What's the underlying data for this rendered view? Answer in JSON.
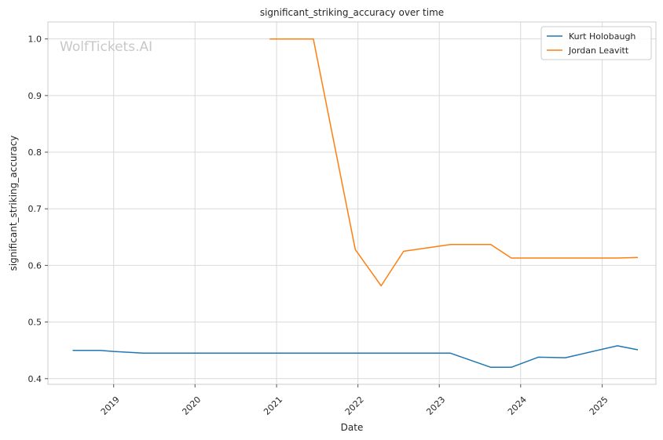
{
  "chart_data": {
    "type": "line",
    "title": "significant_striking_accuracy over time",
    "xlabel": "Date",
    "ylabel": "significant_striking_accuracy",
    "watermark": "WolfTickets.AI",
    "x_ticks": [
      "2019",
      "2020",
      "2021",
      "2022",
      "2023",
      "2024",
      "2025"
    ],
    "x_tick_dates": [
      "2019-01-01",
      "2020-01-01",
      "2021-01-01",
      "2022-01-01",
      "2023-01-01",
      "2024-01-01",
      "2025-01-01"
    ],
    "xlim": [
      "2018-03-12",
      "2025-08-30"
    ],
    "ylim": [
      0.39,
      1.03
    ],
    "y_ticks": [
      "0.4",
      "0.5",
      "0.6",
      "0.7",
      "0.8",
      "0.9",
      "1.0"
    ],
    "y_tick_values": [
      0.4,
      0.5,
      0.6,
      0.7,
      0.8,
      0.9,
      1.0
    ],
    "grid": true,
    "legend_position": "top-right",
    "series": [
      {
        "name": "Kurt Holobaugh",
        "color": "#1f77b4",
        "points": [
          {
            "x": "2018-07-01",
            "y": 0.45
          },
          {
            "x": "2018-11-01",
            "y": 0.45
          },
          {
            "x": "2019-01-01",
            "y": 0.448
          },
          {
            "x": "2019-05-15",
            "y": 0.445
          },
          {
            "x": "2023-02-20",
            "y": 0.445
          },
          {
            "x": "2023-08-20",
            "y": 0.42
          },
          {
            "x": "2023-11-20",
            "y": 0.42
          },
          {
            "x": "2024-03-20",
            "y": 0.438
          },
          {
            "x": "2024-07-20",
            "y": 0.437
          },
          {
            "x": "2025-03-10",
            "y": 0.458
          },
          {
            "x": "2025-06-10",
            "y": 0.451
          }
        ]
      },
      {
        "name": "Jordan Leavitt",
        "color": "#ff7f0e",
        "points": [
          {
            "x": "2020-12-01",
            "y": 1.0
          },
          {
            "x": "2021-06-15",
            "y": 1.0
          },
          {
            "x": "2021-12-20",
            "y": 0.628
          },
          {
            "x": "2022-04-15",
            "y": 0.564
          },
          {
            "x": "2022-07-25",
            "y": 0.625
          },
          {
            "x": "2023-02-20",
            "y": 0.637
          },
          {
            "x": "2023-08-20",
            "y": 0.637
          },
          {
            "x": "2023-11-20",
            "y": 0.613
          },
          {
            "x": "2025-03-10",
            "y": 0.613
          },
          {
            "x": "2025-06-10",
            "y": 0.614
          }
        ]
      }
    ]
  }
}
